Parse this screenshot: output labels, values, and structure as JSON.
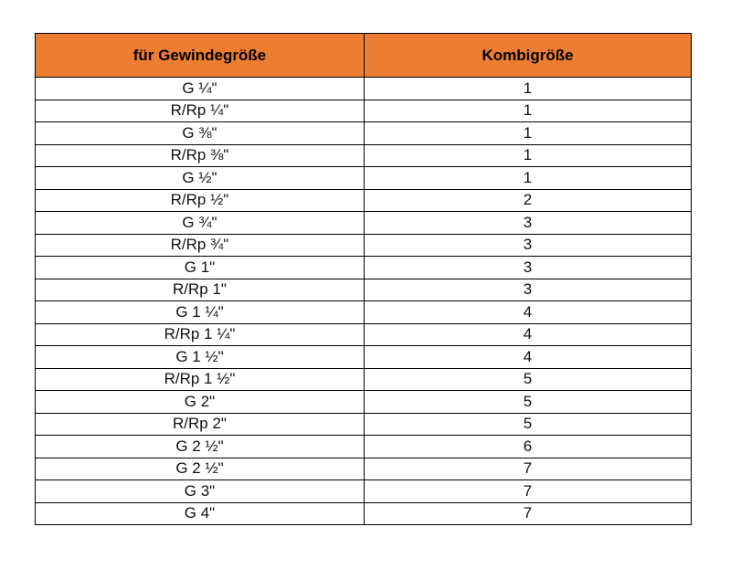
{
  "table": {
    "header": [
      "für Gewindegröße",
      "Kombigröße"
    ],
    "rows": [
      [
        "G ¼\"",
        1
      ],
      [
        "R/Rp ¼\"",
        1
      ],
      [
        "G ⅜\"",
        1
      ],
      [
        "R/Rp ⅜\"",
        1
      ],
      [
        "G ½\"",
        1
      ],
      [
        "R/Rp ½\"",
        2
      ],
      [
        "G ¾\"",
        3
      ],
      [
        "R/Rp ¾\"",
        3
      ],
      [
        "G 1\"",
        3
      ],
      [
        "R/Rp 1\"",
        3
      ],
      [
        "G 1 ¼\"",
        4
      ],
      [
        "R/Rp 1 ¼\"",
        4
      ],
      [
        "G 1 ½\"",
        4
      ],
      [
        "R/Rp 1 ½\"",
        5
      ],
      [
        "G 2\"",
        5
      ],
      [
        "R/Rp 2\"",
        5
      ],
      [
        "G 2 ½\"",
        6
      ],
      [
        "G 2 ½\"",
        7
      ],
      [
        "G 3\"",
        7
      ],
      [
        "G 4\"",
        7
      ]
    ]
  }
}
